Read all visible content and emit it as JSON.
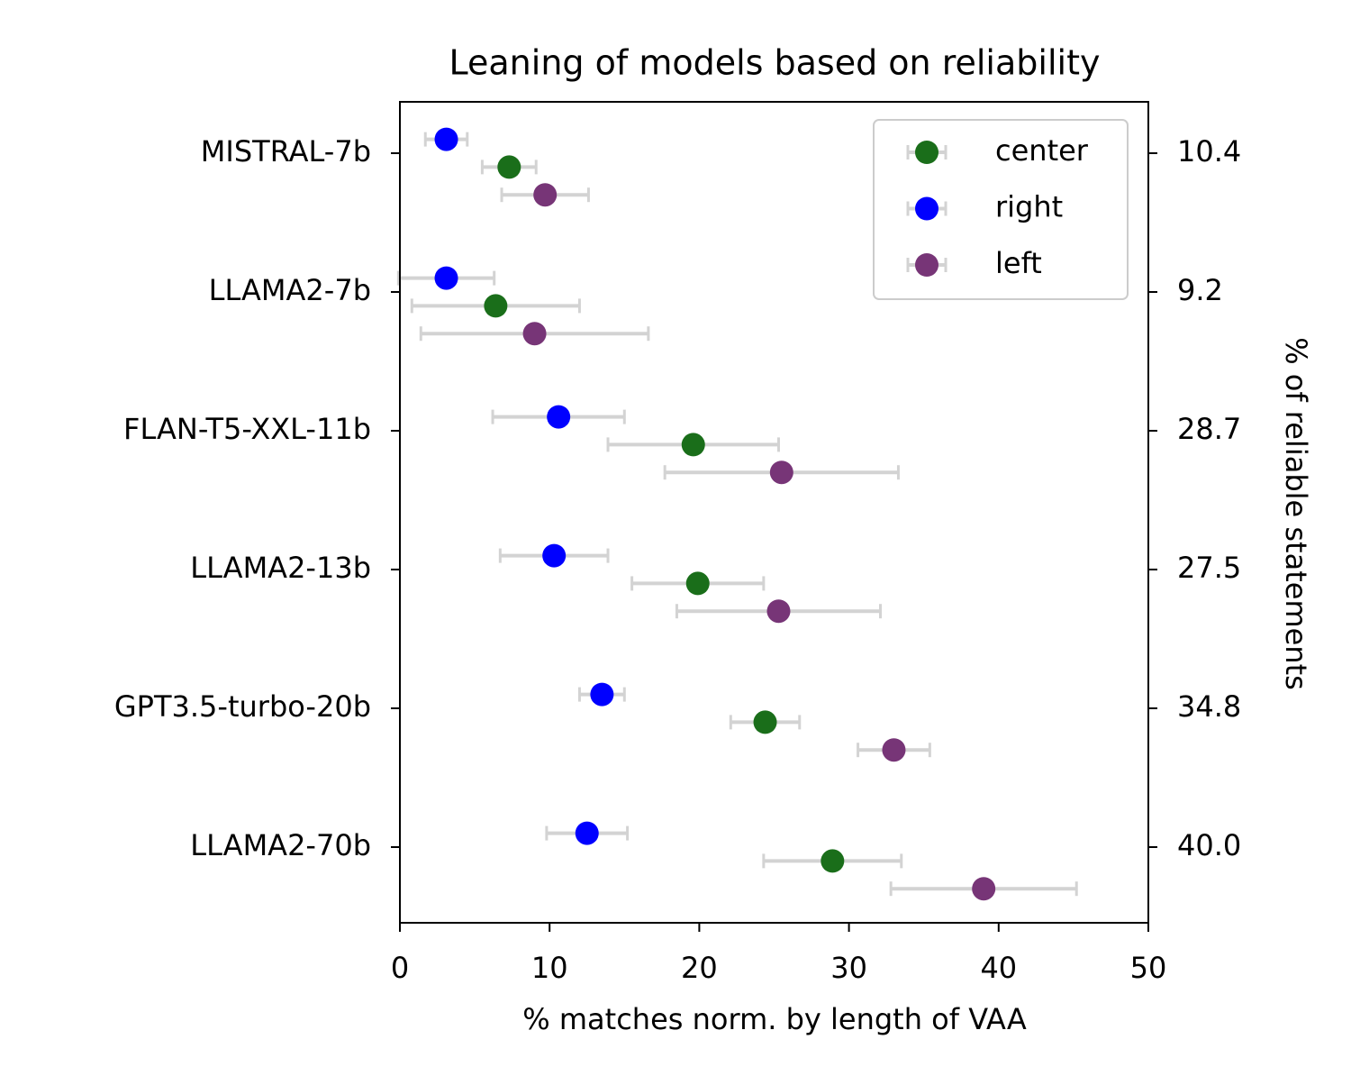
{
  "chart_data": {
    "type": "errordot",
    "title": "Leaning of models based on reliability",
    "xlabel": "% matches norm. by length of VAA",
    "y2label": "% of reliable statements",
    "categories": [
      "MISTRAL-7b",
      "LLAMA2-7b",
      "FLAN-T5-XXL-11b",
      "LLAMA2-13b",
      "GPT3.5-turbo-20b",
      "LLAMA2-70b"
    ],
    "y2_values": [
      10.4,
      9.2,
      28.7,
      27.5,
      34.8,
      40.0
    ],
    "y2_value_labels": [
      "10.4",
      "9.2",
      "28.7",
      "27.5",
      "34.8",
      "40.0"
    ],
    "xlim": [
      0,
      50
    ],
    "xticks": [
      0,
      10,
      20,
      30,
      40,
      50
    ],
    "legend": "upper right",
    "error_color": "#d3d3d3",
    "series": [
      {
        "name": "center",
        "color": "#1a6e1a",
        "values": [
          7.3,
          6.4,
          19.6,
          19.9,
          24.4,
          28.9
        ],
        "errors": [
          1.8,
          5.6,
          5.7,
          4.4,
          2.3,
          4.6
        ]
      },
      {
        "name": "right",
        "color": "#0000ff",
        "values": [
          3.1,
          3.1,
          10.6,
          10.3,
          13.5,
          12.5
        ],
        "errors": [
          1.4,
          3.2,
          4.4,
          3.6,
          1.5,
          2.7
        ]
      },
      {
        "name": "left",
        "color": "#773577",
        "values": [
          9.7,
          9.0,
          25.5,
          25.3,
          33.0,
          39.0
        ],
        "errors": [
          2.9,
          7.6,
          7.8,
          6.8,
          2.4,
          6.2
        ]
      }
    ]
  }
}
